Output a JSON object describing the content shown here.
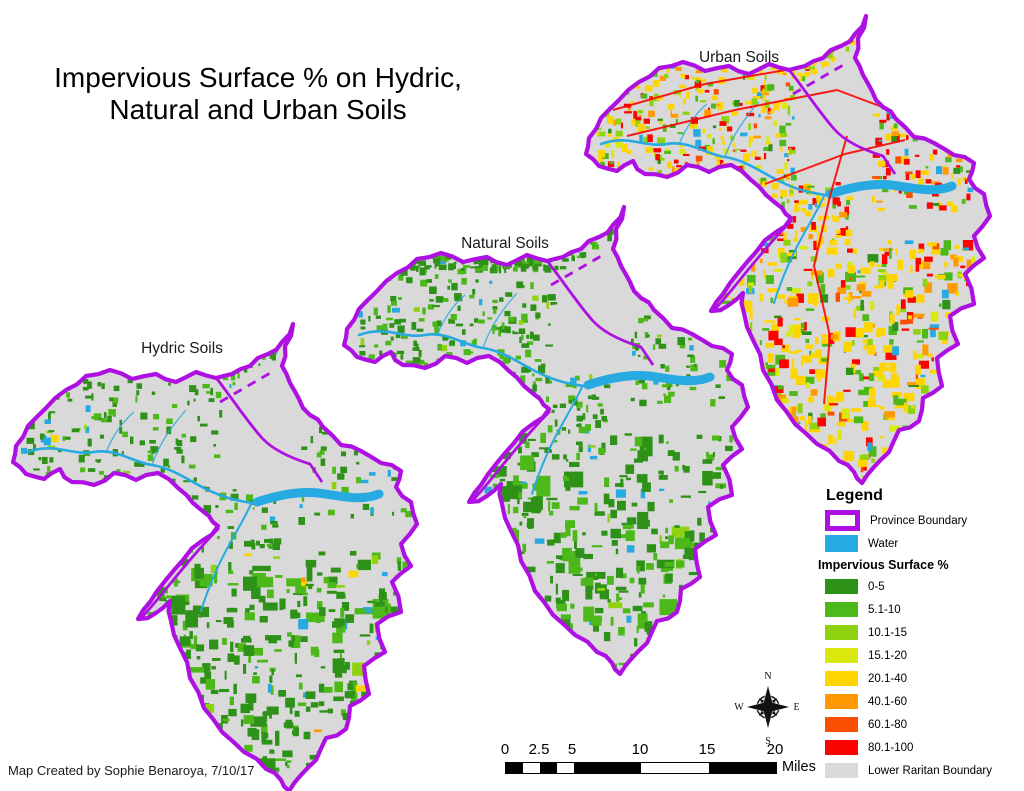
{
  "title": {
    "line1": "Impervious Surface % on Hydric,",
    "line2": "Natural and Urban Soils"
  },
  "maps": [
    {
      "id": "hydric",
      "label": "Hydric Soils"
    },
    {
      "id": "natural",
      "label": "Natural Soils"
    },
    {
      "id": "urban",
      "label": "Urban Soils"
    }
  ],
  "legend": {
    "title": "Legend",
    "province_boundary_label": "Province Boundary",
    "province_boundary_color": "#ae10e3",
    "water_label": "Water",
    "water_color": "#27a9e1",
    "impervious_heading": "Impervious Surface %",
    "classes": [
      {
        "label": "0-5",
        "color": "#2e9118"
      },
      {
        "label": "5.1-10",
        "color": "#4cb81a"
      },
      {
        "label": "10.1-15",
        "color": "#8fd310"
      },
      {
        "label": "15.1-20",
        "color": "#dbe80e"
      },
      {
        "label": "20.1-40",
        "color": "#ffd500"
      },
      {
        "label": "40.1-60",
        "color": "#ff9b00"
      },
      {
        "label": "60.1-80",
        "color": "#fa4f00"
      },
      {
        "label": "80.1-100",
        "color": "#fb0400"
      }
    ],
    "lower_raritan_label": "Lower Raritan Boundary",
    "lower_raritan_color": "#d9d9d9"
  },
  "scale_bar": {
    "ticks": [
      "0",
      "2.5",
      "5",
      "10",
      "15",
      "20"
    ],
    "unit": "Miles"
  },
  "compass": {
    "n": "N",
    "e": "E",
    "s": "S",
    "w": "W"
  },
  "credit": "Map Created by Sophie Benaroya, 7/10/17"
}
